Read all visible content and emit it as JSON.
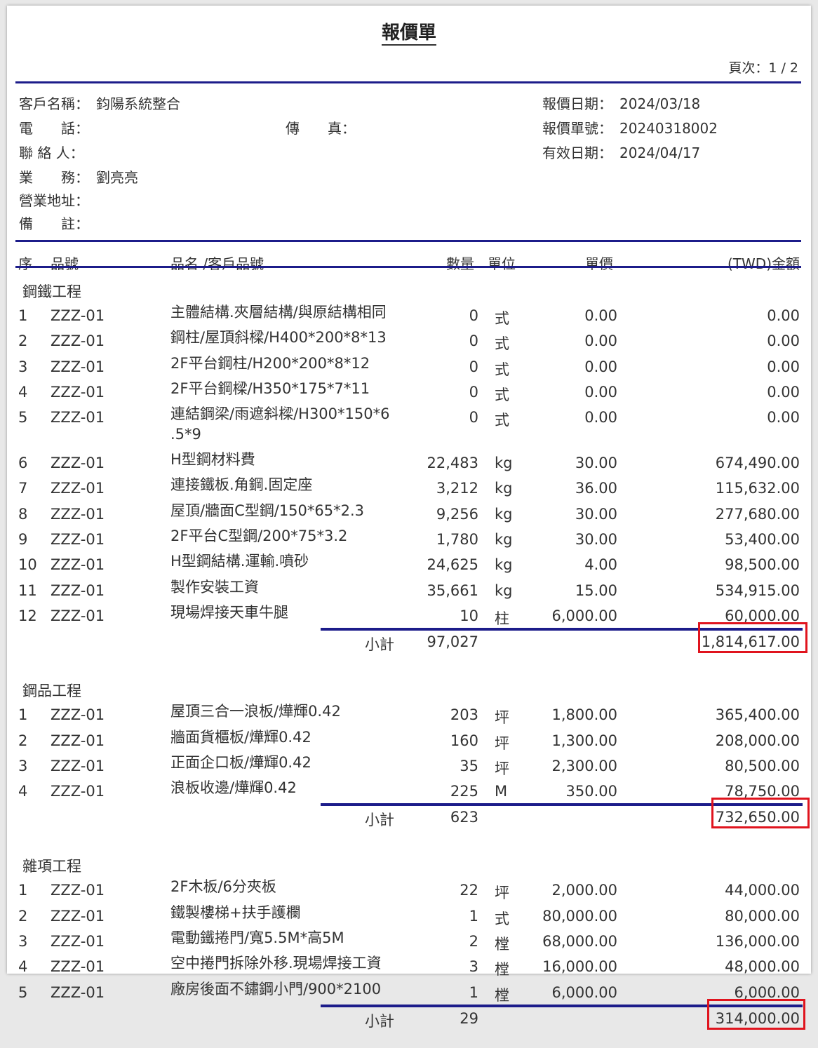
{
  "title": "報價單",
  "page_no": "頁次：1 / 2",
  "info": {
    "customer_label": "客戶名稱：",
    "customer": "鈞陽系統整合",
    "phone_label": "電　　話：",
    "phone": "",
    "fax_label": "傳　　真：",
    "fax": "",
    "contact_label": "聯 絡 人：",
    "contact": "",
    "sales_label": "業　　務：",
    "sales": "劉亮亮",
    "address_label": "營業地址：",
    "address": "",
    "note_label": "備　　註：",
    "note": "",
    "quote_date_label": "報價日期：",
    "quote_date": "2024/03/18",
    "quote_no_label": "報價單號：",
    "quote_no": "20240318002",
    "valid_date_label": "有效日期：",
    "valid_date": "2024/04/17"
  },
  "columns": {
    "seq": "序",
    "code": "品號",
    "name": "品名 /客戶品號",
    "qty": "數量",
    "unit": "單位",
    "price": "單價",
    "amount": "(TWD)金額"
  },
  "subtotal_label": "小計",
  "sections": [
    {
      "title": "鋼鐵工程",
      "rows": [
        [
          "1",
          "ZZZ-01",
          "主體結構.夾層結構/與原結構相同",
          "0",
          "式",
          "0.00",
          "0.00"
        ],
        [
          "2",
          "ZZZ-01",
          "鋼柱/屋頂斜樑/H400*200*8*13",
          "0",
          "式",
          "0.00",
          "0.00"
        ],
        [
          "3",
          "ZZZ-01",
          "2F平台鋼柱/H200*200*8*12",
          "0",
          "式",
          "0.00",
          "0.00"
        ],
        [
          "4",
          "ZZZ-01",
          "2F平台鋼樑/H350*175*7*11",
          "0",
          "式",
          "0.00",
          "0.00"
        ],
        [
          "5",
          "ZZZ-01",
          "連結鋼梁/雨遮斜樑/H300*150*6 .5*9",
          "0",
          "式",
          "0.00",
          "0.00"
        ],
        [
          "6",
          "ZZZ-01",
          "H型鋼材料費",
          "22,483",
          "kg",
          "30.00",
          "674,490.00"
        ],
        [
          "7",
          "ZZZ-01",
          "連接鐵板.角鋼.固定座",
          "3,212",
          "kg",
          "36.00",
          "115,632.00"
        ],
        [
          "8",
          "ZZZ-01",
          "屋頂/牆面C型鋼/150*65*2.3",
          "9,256",
          "kg",
          "30.00",
          "277,680.00"
        ],
        [
          "9",
          "ZZZ-01",
          "2F平台C型鋼/200*75*3.2",
          "1,780",
          "kg",
          "30.00",
          "53,400.00"
        ],
        [
          "10",
          "ZZZ-01",
          "H型鋼結構.運輸.噴砂",
          "24,625",
          "kg",
          "4.00",
          "98,500.00"
        ],
        [
          "11",
          "ZZZ-01",
          "製作安裝工資",
          "35,661",
          "kg",
          "15.00",
          "534,915.00"
        ],
        [
          "12",
          "ZZZ-01",
          "現場焊接天車牛腿",
          "10",
          "柱",
          "6,000.00",
          "60,000.00"
        ]
      ],
      "subtotal_qty": "97,027",
      "subtotal_amount": "1,814,617.00",
      "highlighted": true
    },
    {
      "title": "鋼品工程",
      "rows": [
        [
          "1",
          "ZZZ-01",
          "屋頂三合一浪板/燁輝0.42",
          "203",
          "坪",
          "1,800.00",
          "365,400.00"
        ],
        [
          "2",
          "ZZZ-01",
          "牆面貨櫃板/燁輝0.42",
          "160",
          "坪",
          "1,300.00",
          "208,000.00"
        ],
        [
          "3",
          "ZZZ-01",
          "正面企口板/燁輝0.42",
          "35",
          "坪",
          "2,300.00",
          "80,500.00"
        ],
        [
          "4",
          "ZZZ-01",
          "浪板收邊/燁輝0.42",
          "225",
          "M",
          "350.00",
          "78,750.00"
        ]
      ],
      "subtotal_qty": "623",
      "subtotal_amount": "732,650.00",
      "highlighted": true
    },
    {
      "title": "雜項工程",
      "rows": [
        [
          "1",
          "ZZZ-01",
          "2F木板/6分夾板",
          "22",
          "坪",
          "2,000.00",
          "44,000.00"
        ],
        [
          "2",
          "ZZZ-01",
          "鐵製樓梯+扶手護欄",
          "1",
          "式",
          "80,000.00",
          "80,000.00"
        ],
        [
          "3",
          "ZZZ-01",
          "電動鐵捲門/寬5.5M*高5M",
          "2",
          "樘",
          "68,000.00",
          "136,000.00"
        ],
        [
          "4",
          "ZZZ-01",
          "空中捲門拆除外移.現場焊接工資",
          "3",
          "樘",
          "16,000.00",
          "48,000.00"
        ],
        [
          "5",
          "ZZZ-01",
          "廠房後面不鏽鋼小門/900*2100",
          "1",
          "樘",
          "6,000.00",
          "6,000.00"
        ]
      ],
      "subtotal_qty": "29",
      "subtotal_amount": "314,000.00",
      "highlighted": true
    }
  ],
  "colors": {
    "rule": "#1c1c8a",
    "highlight": "#e0141e"
  }
}
